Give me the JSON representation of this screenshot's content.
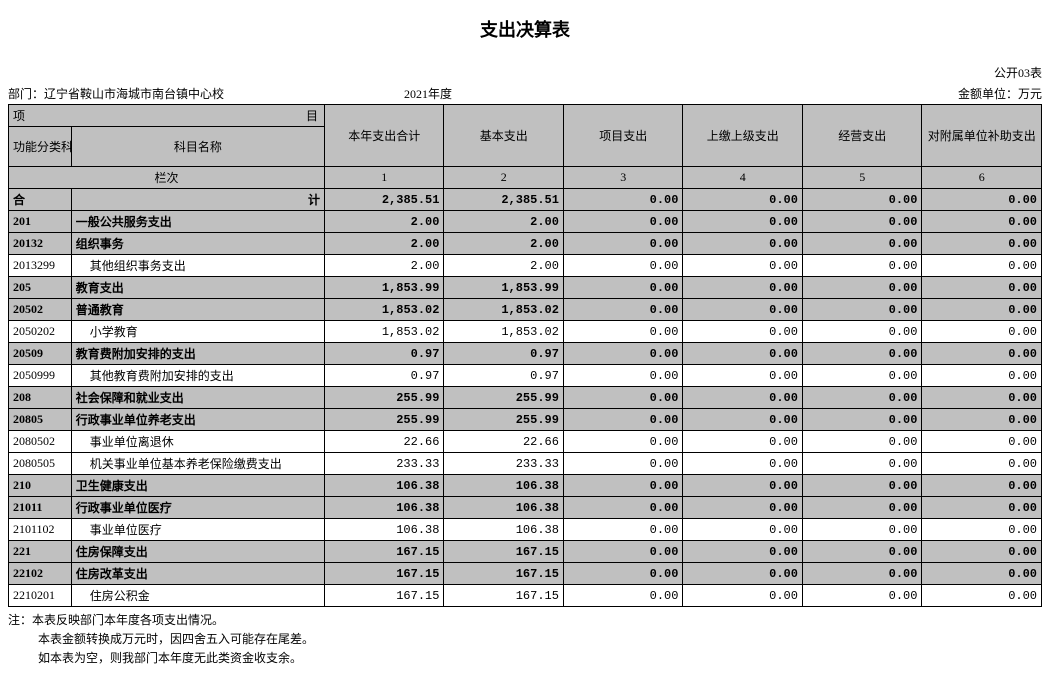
{
  "title": "支出决算表",
  "form_no": "公开03表",
  "dept_label": "部门：",
  "dept": "辽宁省鞍山市海城市南台镇中心校",
  "year": "2021年度",
  "unit_label": "金额单位：万元",
  "header": {
    "corner_top": "项",
    "corner_top2": "目",
    "corner_bot": "",
    "code": "功能分类科目编码",
    "name": "科目名称",
    "cols": [
      "本年支出合计",
      "基本支出",
      "项目支出",
      "上缴上级支出",
      "经营支出",
      "对附属单位补助支出"
    ],
    "lane_label": "栏次",
    "lane_nums": [
      "1",
      "2",
      "3",
      "4",
      "5",
      "6"
    ],
    "total_label": "合",
    "total_label2": "计"
  },
  "total_row": [
    "2,385.51",
    "2,385.51",
    "0.00",
    "0.00",
    "0.00",
    "0.00"
  ],
  "rows": [
    {
      "code": "201",
      "name": "一般公共服务支出",
      "vals": [
        "2.00",
        "2.00",
        "0.00",
        "0.00",
        "0.00",
        "0.00"
      ],
      "style": "gray",
      "indent": 0
    },
    {
      "code": "20132",
      "name": "组织事务",
      "vals": [
        "2.00",
        "2.00",
        "0.00",
        "0.00",
        "0.00",
        "0.00"
      ],
      "style": "gray",
      "indent": 0
    },
    {
      "code": "2013299",
      "name": "其他组织事务支出",
      "vals": [
        "2.00",
        "2.00",
        "0.00",
        "0.00",
        "0.00",
        "0.00"
      ],
      "style": "cyan",
      "indent": 1
    },
    {
      "code": "205",
      "name": "教育支出",
      "vals": [
        "1,853.99",
        "1,853.99",
        "0.00",
        "0.00",
        "0.00",
        "0.00"
      ],
      "style": "gray",
      "indent": 0
    },
    {
      "code": "20502",
      "name": "普通教育",
      "vals": [
        "1,853.02",
        "1,853.02",
        "0.00",
        "0.00",
        "0.00",
        "0.00"
      ],
      "style": "gray",
      "indent": 0
    },
    {
      "code": "2050202",
      "name": "小学教育",
      "vals": [
        "1,853.02",
        "1,853.02",
        "0.00",
        "0.00",
        "0.00",
        "0.00"
      ],
      "style": "cyan",
      "indent": 1
    },
    {
      "code": "20509",
      "name": "教育费附加安排的支出",
      "vals": [
        "0.97",
        "0.97",
        "0.00",
        "0.00",
        "0.00",
        "0.00"
      ],
      "style": "gray",
      "indent": 0
    },
    {
      "code": "2050999",
      "name": "其他教育费附加安排的支出",
      "vals": [
        "0.97",
        "0.97",
        "0.00",
        "0.00",
        "0.00",
        "0.00"
      ],
      "style": "cyan",
      "indent": 1
    },
    {
      "code": "208",
      "name": "社会保障和就业支出",
      "vals": [
        "255.99",
        "255.99",
        "0.00",
        "0.00",
        "0.00",
        "0.00"
      ],
      "style": "gray",
      "indent": 0
    },
    {
      "code": "20805",
      "name": "行政事业单位养老支出",
      "vals": [
        "255.99",
        "255.99",
        "0.00",
        "0.00",
        "0.00",
        "0.00"
      ],
      "style": "gray",
      "indent": 0
    },
    {
      "code": "2080502",
      "name": "事业单位离退休",
      "vals": [
        "22.66",
        "22.66",
        "0.00",
        "0.00",
        "0.00",
        "0.00"
      ],
      "style": "cyan",
      "indent": 1
    },
    {
      "code": "2080505",
      "name": "机关事业单位基本养老保险缴费支出",
      "vals": [
        "233.33",
        "233.33",
        "0.00",
        "0.00",
        "0.00",
        "0.00"
      ],
      "style": "cyan",
      "indent": 1
    },
    {
      "code": "210",
      "name": "卫生健康支出",
      "vals": [
        "106.38",
        "106.38",
        "0.00",
        "0.00",
        "0.00",
        "0.00"
      ],
      "style": "gray",
      "indent": 0
    },
    {
      "code": "21011",
      "name": "行政事业单位医疗",
      "vals": [
        "106.38",
        "106.38",
        "0.00",
        "0.00",
        "0.00",
        "0.00"
      ],
      "style": "gray",
      "indent": 0
    },
    {
      "code": "2101102",
      "name": "事业单位医疗",
      "vals": [
        "106.38",
        "106.38",
        "0.00",
        "0.00",
        "0.00",
        "0.00"
      ],
      "style": "cyan",
      "indent": 1
    },
    {
      "code": "221",
      "name": "住房保障支出",
      "vals": [
        "167.15",
        "167.15",
        "0.00",
        "0.00",
        "0.00",
        "0.00"
      ],
      "style": "gray",
      "indent": 0
    },
    {
      "code": "22102",
      "name": "住房改革支出",
      "vals": [
        "167.15",
        "167.15",
        "0.00",
        "0.00",
        "0.00",
        "0.00"
      ],
      "style": "gray",
      "indent": 0
    },
    {
      "code": "2210201",
      "name": "住房公积金",
      "vals": [
        "167.15",
        "167.15",
        "0.00",
        "0.00",
        "0.00",
        "0.00"
      ],
      "style": "cyan",
      "indent": 1
    }
  ],
  "notes": [
    "注：本表反映部门本年度各项支出情况。",
    "本表金额转换成万元时，因四舍五入可能存在尾差。",
    "如本表为空，则我部门本年度无此类资金收支余。"
  ]
}
